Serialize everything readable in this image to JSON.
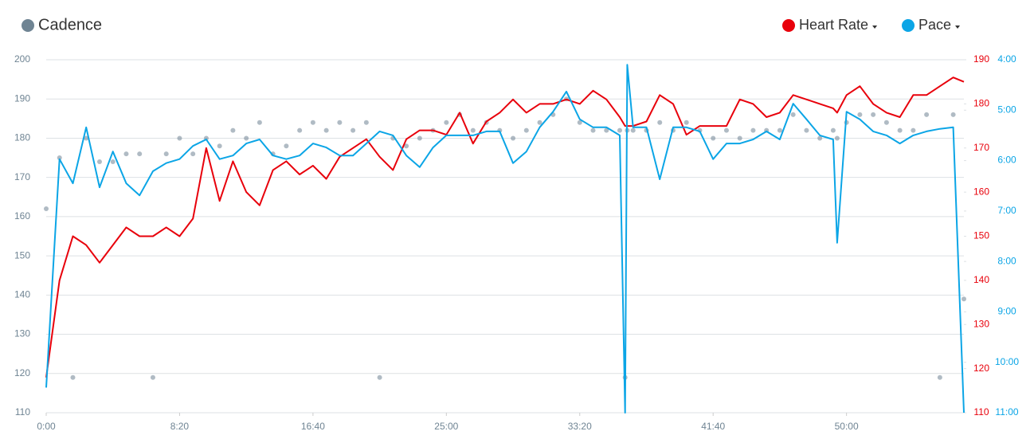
{
  "chart_data": {
    "type": "line",
    "x": [
      0,
      50,
      100,
      150,
      200,
      250,
      300,
      350,
      400,
      450,
      500,
      550,
      600,
      650,
      700,
      750,
      800,
      850,
      900,
      950,
      1000,
      1050,
      1100,
      1150,
      1200,
      1250,
      1300,
      1350,
      1400,
      1450,
      1500,
      1550,
      1600,
      1650,
      1700,
      1750,
      1800,
      1850,
      1900,
      1950,
      2000,
      2050,
      2100,
      2150,
      2170,
      2178,
      2200,
      2250,
      2300,
      2350,
      2400,
      2450,
      2500,
      2550,
      2600,
      2650,
      2700,
      2750,
      2800,
      2850,
      2900,
      2950,
      2965,
      3000,
      3050,
      3100,
      3150,
      3200,
      3250,
      3300,
      3350,
      3400,
      3440
    ],
    "xlim": [
      0,
      3440
    ],
    "xticks": [
      {
        "value": 0,
        "label": "0:00"
      },
      {
        "value": 500,
        "label": "8:20"
      },
      {
        "value": 1000,
        "label": "16:40"
      },
      {
        "value": 1500,
        "label": "25:00"
      },
      {
        "value": 2000,
        "label": "33:20"
      },
      {
        "value": 2500,
        "label": "41:40"
      },
      {
        "value": 3000,
        "label": "50:00"
      }
    ],
    "ylim": [
      110,
      200
    ],
    "yticks": [
      110,
      120,
      130,
      140,
      150,
      160,
      170,
      180,
      190,
      200
    ],
    "y2lim": [
      110,
      190
    ],
    "y2ticks": [
      110,
      120,
      130,
      140,
      150,
      160,
      170,
      180,
      190
    ],
    "y3lim": [
      11,
      4
    ],
    "y3ticks": [
      {
        "value": 4,
        "label": "4:00"
      },
      {
        "value": 5,
        "label": "5:00"
      },
      {
        "value": 6,
        "label": "6:00"
      },
      {
        "value": 7,
        "label": "7:00"
      },
      {
        "value": 8,
        "label": "8:00"
      },
      {
        "value": 9,
        "label": "9:00"
      },
      {
        "value": 10,
        "label": "10:00"
      },
      {
        "value": 11,
        "label": "11:00"
      }
    ],
    "grid": true,
    "series": [
      {
        "name": "Cadence",
        "type": "scatter",
        "axis": "y",
        "color": "#6f8493",
        "values": [
          162,
          175,
          119,
          180,
          174,
          174,
          176,
          176,
          119,
          176,
          180,
          176,
          180,
          178,
          182,
          180,
          184,
          176,
          178,
          182,
          184,
          182,
          184,
          182,
          184,
          119,
          180,
          178,
          180,
          182,
          184,
          186,
          182,
          184,
          182,
          180,
          182,
          184,
          186,
          190,
          184,
          182,
          182,
          182,
          119,
          182,
          182,
          182,
          184,
          182,
          184,
          182,
          180,
          182,
          180,
          182,
          182,
          182,
          186,
          182,
          180,
          182,
          180,
          184,
          186,
          186,
          184,
          182,
          182,
          186,
          119,
          186,
          139
        ]
      },
      {
        "name": "Heart Rate",
        "type": "line",
        "axis": "y2",
        "color": "#e8000b",
        "values": [
          118,
          140,
          150,
          148,
          144,
          148,
          152,
          150,
          150,
          152,
          150,
          154,
          170,
          158,
          167,
          160,
          157,
          165,
          167,
          164,
          166,
          163,
          168,
          170,
          172,
          168,
          165,
          172,
          174,
          174,
          173,
          178,
          171,
          176,
          178,
          181,
          178,
          180,
          180,
          181,
          180,
          183,
          181,
          177,
          175,
          175,
          175,
          176,
          182,
          180,
          173,
          175,
          175,
          175,
          181,
          180,
          177,
          178,
          182,
          181,
          180,
          179,
          178,
          182,
          184,
          180,
          178,
          177,
          182,
          182,
          184,
          186,
          185
        ]
      },
      {
        "name": "Pace",
        "type": "line",
        "axis": "y3",
        "color": "#0ba5e6",
        "values": [
          10.5,
          5.97,
          6.45,
          5.34,
          6.53,
          5.82,
          6.45,
          6.69,
          6.21,
          6.05,
          5.97,
          5.71,
          5.58,
          5.97,
          5.9,
          5.66,
          5.58,
          5.9,
          5.97,
          5.9,
          5.66,
          5.74,
          5.9,
          5.9,
          5.66,
          5.42,
          5.5,
          5.9,
          6.13,
          5.74,
          5.5,
          5.5,
          5.5,
          5.42,
          5.42,
          6.05,
          5.82,
          5.34,
          5.03,
          4.63,
          5.18,
          5.34,
          5.34,
          5.5,
          11,
          4.1,
          5.34,
          5.34,
          6.37,
          5.34,
          5.34,
          5.42,
          5.97,
          5.66,
          5.66,
          5.58,
          5.42,
          5.58,
          4.87,
          5.18,
          5.5,
          5.58,
          7.63,
          5.03,
          5.18,
          5.42,
          5.5,
          5.66,
          5.5,
          5.42,
          5.37,
          5.34,
          11
        ]
      }
    ]
  }
}
